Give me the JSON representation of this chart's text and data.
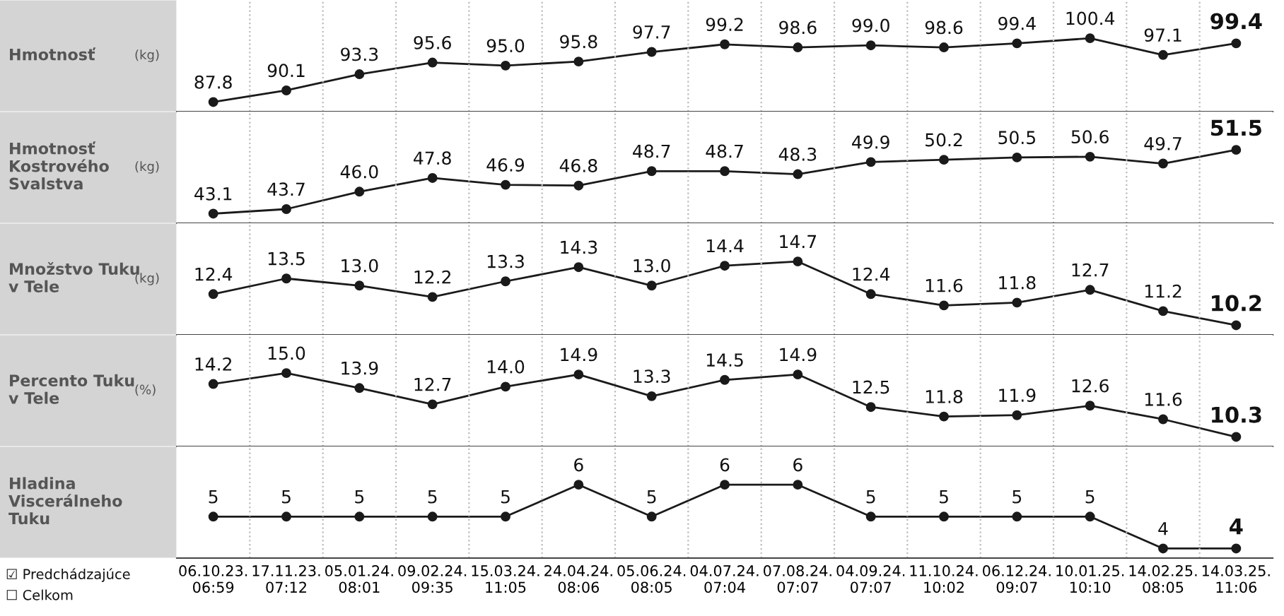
{
  "chart_data": [
    {
      "type": "line",
      "ylabel": "Hmotnosť",
      "annotations": [
        "(kg)"
      ],
      "categories": [
        null,
        null,
        null,
        null,
        null,
        null,
        null,
        null,
        null,
        null,
        null,
        null,
        null,
        null,
        null
      ],
      "series": [
        {
          "color": "#1a1a1a",
          "values": [
            87.8,
            90.1,
            93.3,
            95.6,
            95.0,
            95.8,
            97.7,
            99.2,
            98.6,
            99.0,
            98.6,
            99.4,
            100.4,
            97.1,
            99.4
          ],
          "value_labels": [
            "87.8",
            "90.1",
            "93.3",
            "95.6",
            "95.0",
            "95.8",
            "97.7",
            "99.2",
            "98.6",
            "99.0",
            "98.6",
            "99.4",
            "100.4",
            "97.1",
            "99.4"
          ]
        }
      ],
      "marker": "circle",
      "grid": "x",
      "tick_labels": false
    },
    {
      "type": "line",
      "ylabel": "Hmotnosť\nKostrového\nSvalstva",
      "annotations": [
        "(kg)"
      ],
      "categories": [
        null,
        null,
        null,
        null,
        null,
        null,
        null,
        null,
        null,
        null,
        null,
        null,
        null,
        null,
        null
      ],
      "series": [
        {
          "color": "#1a1a1a",
          "values": [
            43.1,
            43.7,
            46.0,
            47.8,
            46.9,
            46.8,
            48.7,
            48.7,
            48.3,
            49.9,
            50.2,
            50.5,
            50.6,
            49.7,
            51.5
          ],
          "value_labels": [
            "43.1",
            "43.7",
            "46.0",
            "47.8",
            "46.9",
            "46.8",
            "48.7",
            "48.7",
            "48.3",
            "49.9",
            "50.2",
            "50.5",
            "50.6",
            "49.7",
            "51.5"
          ]
        }
      ],
      "marker": "circle",
      "grid": "x",
      "tick_labels": false
    },
    {
      "type": "line",
      "ylabel": "Množstvo Tuku\nv Tele",
      "annotations": [
        "(kg)"
      ],
      "categories": [
        null,
        null,
        null,
        null,
        null,
        null,
        null,
        null,
        null,
        null,
        null,
        null,
        null,
        null,
        null
      ],
      "series": [
        {
          "color": "#1a1a1a",
          "values": [
            12.4,
            13.5,
            13.0,
            12.2,
            13.3,
            14.3,
            13.0,
            14.4,
            14.7,
            12.4,
            11.6,
            11.8,
            12.7,
            11.2,
            10.2
          ],
          "value_labels": [
            "12.4",
            "13.5",
            "13.0",
            "12.2",
            "13.3",
            "14.3",
            "13.0",
            "14.4",
            "14.7",
            "12.4",
            "11.6",
            "11.8",
            "12.7",
            "11.2",
            "10.2"
          ]
        }
      ],
      "marker": "circle",
      "grid": "x",
      "tick_labels": false
    },
    {
      "type": "line",
      "ylabel": "Percento Tuku\nv Tele",
      "annotations": [
        "(%)"
      ],
      "categories": [
        null,
        null,
        null,
        null,
        null,
        null,
        null,
        null,
        null,
        null,
        null,
        null,
        null,
        null,
        null
      ],
      "series": [
        {
          "color": "#1a1a1a",
          "values": [
            14.2,
            15.0,
            13.9,
            12.7,
            14.0,
            14.9,
            13.3,
            14.5,
            14.9,
            12.5,
            11.8,
            11.9,
            12.6,
            11.6,
            10.3
          ],
          "value_labels": [
            "14.2",
            "15.0",
            "13.9",
            "12.7",
            "14.0",
            "14.9",
            "13.3",
            "14.5",
            "14.9",
            "12.5",
            "11.8",
            "11.9",
            "12.6",
            "11.6",
            "10.3"
          ]
        }
      ],
      "marker": "circle",
      "grid": "x",
      "tick_labels": false
    },
    {
      "type": "line",
      "ylabel": "Hladina\nViscerálneho\nTuku",
      "annotations": [
        "☑ Predchádzajúce",
        "☐ Celkom"
      ],
      "categories": [
        "06.10.23.\n06:59",
        "17.11.23.\n07:12",
        "05.01.24.\n08:01",
        "09.02.24.\n09:35",
        "15.03.24.\n11:05",
        "24.04.24.\n08:06",
        "05.06.24.\n08:05",
        "04.07.24.\n07:04",
        "07.08.24.\n07:07",
        "04.09.24.\n07:07",
        "11.10.24.\n10:02",
        "06.12.24.\n09:07",
        "10.01.25.\n10:10",
        "14.02.25.\n08:05",
        "14.03.25.\n11:06"
      ],
      "series": [
        {
          "color": "#1a1a1a",
          "values": [
            5,
            5,
            5,
            5,
            5,
            6,
            5,
            6,
            6,
            5,
            5,
            5,
            5,
            4,
            4
          ]
        }
      ],
      "data_labels": true,
      "marker": "circle",
      "grid": "x",
      "tick_labels": "x"
    }
  ]
}
